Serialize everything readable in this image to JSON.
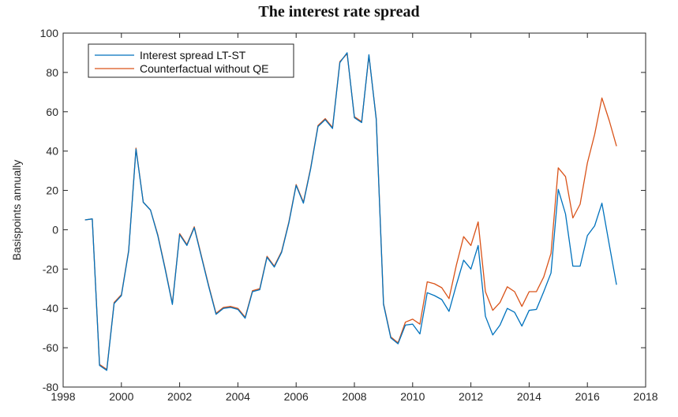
{
  "chart_data": {
    "type": "line",
    "title": "The interest rate spread",
    "xlabel": "",
    "ylabel": "Basispoints annually",
    "xlim": [
      1998,
      2018
    ],
    "ylim": [
      -80,
      100
    ],
    "xticks": [
      1998,
      2000,
      2002,
      2004,
      2006,
      2008,
      2010,
      2012,
      2014,
      2016,
      2018
    ],
    "yticks": [
      -80,
      -60,
      -40,
      -20,
      0,
      20,
      40,
      60,
      80,
      100
    ],
    "grid": false,
    "legend_position": "top-left",
    "series": [
      {
        "name": "Interest spread LT-ST",
        "color": "#0072BD",
        "points": [
          [
            1998.75,
            5
          ],
          [
            1999.0,
            5.5
          ],
          [
            1999.25,
            -69
          ],
          [
            1999.5,
            -71.5
          ],
          [
            1999.75,
            -37.5
          ],
          [
            2000.0,
            -33.5
          ],
          [
            2000.25,
            -11
          ],
          [
            2000.5,
            41
          ],
          [
            2000.75,
            14
          ],
          [
            2001.0,
            10
          ],
          [
            2001.25,
            -3
          ],
          [
            2001.5,
            -20
          ],
          [
            2001.75,
            -38
          ],
          [
            2002.0,
            -2.5
          ],
          [
            2002.25,
            -8
          ],
          [
            2002.5,
            1
          ],
          [
            2002.75,
            -14
          ],
          [
            2003.0,
            -29
          ],
          [
            2003.25,
            -43
          ],
          [
            2003.5,
            -40
          ],
          [
            2003.75,
            -39.5
          ],
          [
            2004.0,
            -40.5
          ],
          [
            2004.25,
            -45
          ],
          [
            2004.5,
            -31.5
          ],
          [
            2004.75,
            -30.5
          ],
          [
            2005.0,
            -14
          ],
          [
            2005.25,
            -19
          ],
          [
            2005.5,
            -11.5
          ],
          [
            2005.75,
            3.5
          ],
          [
            2006.0,
            22.5
          ],
          [
            2006.25,
            13.5
          ],
          [
            2006.5,
            31
          ],
          [
            2006.75,
            52.5
          ],
          [
            2007.0,
            56
          ],
          [
            2007.25,
            51.5
          ],
          [
            2007.5,
            85
          ],
          [
            2007.75,
            90
          ],
          [
            2008.0,
            57
          ],
          [
            2008.25,
            54.5
          ],
          [
            2008.5,
            89
          ],
          [
            2008.75,
            56
          ],
          [
            2009.0,
            -38
          ],
          [
            2009.25,
            -55
          ],
          [
            2009.5,
            -58
          ],
          [
            2009.75,
            -48.5
          ],
          [
            2010.0,
            -48
          ],
          [
            2010.25,
            -53
          ],
          [
            2010.5,
            -32
          ],
          [
            2010.75,
            -33.5
          ],
          [
            2011.0,
            -35.5
          ],
          [
            2011.25,
            -41.5
          ],
          [
            2011.5,
            -28
          ],
          [
            2011.75,
            -15.5
          ],
          [
            2012.0,
            -20
          ],
          [
            2012.25,
            -8
          ],
          [
            2012.5,
            -44
          ],
          [
            2012.75,
            -53.5
          ],
          [
            2013.0,
            -48.5
          ],
          [
            2013.25,
            -40
          ],
          [
            2013.5,
            -42
          ],
          [
            2013.75,
            -49
          ],
          [
            2014.0,
            -41
          ],
          [
            2014.25,
            -40.5
          ],
          [
            2014.5,
            -31.5
          ],
          [
            2014.75,
            -22
          ],
          [
            2015.0,
            20.5
          ],
          [
            2015.25,
            8
          ],
          [
            2015.5,
            -18.5
          ],
          [
            2015.75,
            -18.5
          ],
          [
            2016.0,
            -3
          ],
          [
            2016.25,
            2
          ],
          [
            2016.5,
            13.5
          ],
          [
            2016.75,
            -7.5
          ],
          [
            2017.0,
            -28
          ]
        ]
      },
      {
        "name": "Counterfactual without QE",
        "color": "#D95319",
        "points": [
          [
            1998.75,
            5
          ],
          [
            1999.0,
            5.5
          ],
          [
            1999.25,
            -68.5
          ],
          [
            1999.5,
            -71
          ],
          [
            1999.75,
            -37
          ],
          [
            2000.0,
            -33
          ],
          [
            2000.25,
            -10.5
          ],
          [
            2000.5,
            41.5
          ],
          [
            2000.75,
            14
          ],
          [
            2001.0,
            10
          ],
          [
            2001.25,
            -2.5
          ],
          [
            2001.5,
            -19.5
          ],
          [
            2001.75,
            -37.5
          ],
          [
            2002.0,
            -2
          ],
          [
            2002.25,
            -7.5
          ],
          [
            2002.5,
            1.5
          ],
          [
            2002.75,
            -13.5
          ],
          [
            2003.0,
            -28.5
          ],
          [
            2003.25,
            -42.5
          ],
          [
            2003.5,
            -39.5
          ],
          [
            2003.75,
            -39
          ],
          [
            2004.0,
            -40
          ],
          [
            2004.25,
            -44.5
          ],
          [
            2004.5,
            -31
          ],
          [
            2004.75,
            -30
          ],
          [
            2005.0,
            -13.5
          ],
          [
            2005.25,
            -18.5
          ],
          [
            2005.5,
            -11
          ],
          [
            2005.75,
            4
          ],
          [
            2006.0,
            23
          ],
          [
            2006.25,
            14
          ],
          [
            2006.5,
            31.5
          ],
          [
            2006.75,
            53
          ],
          [
            2007.0,
            56.5
          ],
          [
            2007.25,
            52
          ],
          [
            2007.5,
            85.5
          ],
          [
            2007.75,
            89.5
          ],
          [
            2008.0,
            57.5
          ],
          [
            2008.25,
            55
          ],
          [
            2008.5,
            88.5
          ],
          [
            2008.75,
            56.5
          ],
          [
            2009.0,
            -37.5
          ],
          [
            2009.25,
            -54.5
          ],
          [
            2009.5,
            -57.5
          ],
          [
            2009.75,
            -47
          ],
          [
            2010.0,
            -45.5
          ],
          [
            2010.25,
            -48
          ],
          [
            2010.5,
            -26.5
          ],
          [
            2010.75,
            -27.5
          ],
          [
            2011.0,
            -29.5
          ],
          [
            2011.25,
            -35
          ],
          [
            2011.5,
            -18
          ],
          [
            2011.75,
            -3.5
          ],
          [
            2012.0,
            -8
          ],
          [
            2012.25,
            4
          ],
          [
            2012.5,
            -31.5
          ],
          [
            2012.75,
            -41
          ],
          [
            2013.0,
            -37
          ],
          [
            2013.25,
            -29
          ],
          [
            2013.5,
            -31.5
          ],
          [
            2013.75,
            -39
          ],
          [
            2014.0,
            -31.5
          ],
          [
            2014.25,
            -31.5
          ],
          [
            2014.5,
            -24
          ],
          [
            2014.75,
            -12
          ],
          [
            2015.0,
            31.5
          ],
          [
            2015.25,
            27
          ],
          [
            2015.5,
            6
          ],
          [
            2015.75,
            13
          ],
          [
            2016.0,
            34
          ],
          [
            2016.25,
            48.5
          ],
          [
            2016.5,
            67
          ],
          [
            2016.75,
            55.5
          ],
          [
            2017.0,
            42.5
          ]
        ]
      }
    ]
  }
}
